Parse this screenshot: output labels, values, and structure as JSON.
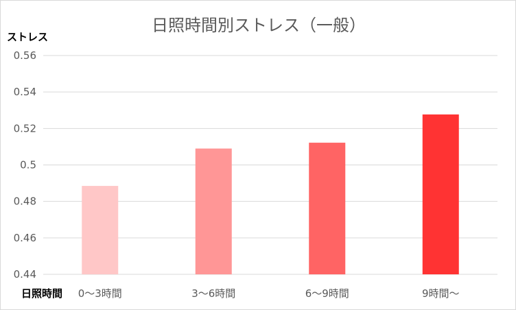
{
  "chart_data": {
    "type": "bar",
    "title": "日照時間別ストレス（一般）",
    "xlabel": "日照時間",
    "ylabel": "ストレス",
    "categories": [
      "0～3時間",
      "3～6時間",
      "6～9時間",
      "9時間～"
    ],
    "values": [
      0.4885,
      0.509,
      0.5122,
      0.5277
    ],
    "ylim": [
      0.44,
      0.56
    ],
    "y_ticks": [
      "0.44",
      "0.46",
      "0.48",
      "0.5",
      "0.52",
      "0.54",
      "0.56"
    ],
    "grid": true,
    "bar_colors": [
      "#ffc7c7",
      "#ff9696",
      "#ff6464",
      "#ff3333"
    ]
  }
}
